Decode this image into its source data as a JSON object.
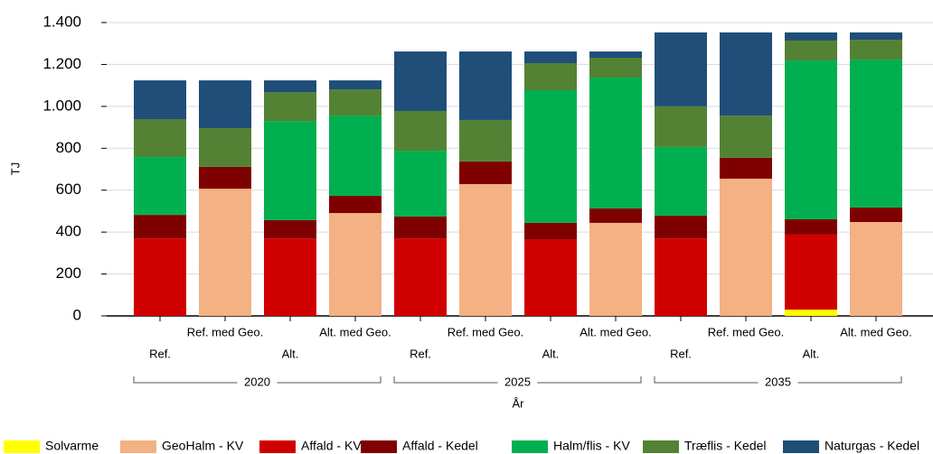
{
  "chart_data": {
    "type": "stacked_bar",
    "categories": [
      "Ref.",
      "Ref. med Geo.",
      "Alt.",
      "Alt. med Geo.",
      "Ref.",
      "Ref. med Geo.",
      "Alt.",
      "Alt. med Geo.",
      "Ref.",
      "Ref. med Geo.",
      "Alt.",
      "Alt. med Geo."
    ],
    "groups": [
      "2020",
      "2025",
      "2035"
    ],
    "xlabel": "År",
    "ylabel": "TJ",
    "ylim": [
      0,
      1400
    ],
    "yticks": [
      0,
      200,
      400,
      600,
      800,
      {
        "value": 1000,
        "label": "1.000"
      },
      {
        "value": 1200,
        "label": "1.200"
      },
      {
        "value": 1400,
        "label": "1.400"
      }
    ],
    "grid": true,
    "legend": "bottom",
    "series": [
      {
        "name": "Solvarme",
        "color": "#ffff00",
        "values": [
          0,
          0,
          0,
          0,
          0,
          0,
          0,
          0,
          0,
          0,
          30,
          0
        ]
      },
      {
        "name": "GeoHalm - KV",
        "color": "#f4b183",
        "values": [
          0,
          607,
          0,
          491,
          0,
          629,
          0,
          444,
          0,
          655,
          0,
          448
        ]
      },
      {
        "name": "Affald - KV",
        "color": "#d00000",
        "values": [
          370,
          0,
          370,
          0,
          370,
          0,
          366,
          0,
          370,
          0,
          358,
          0
        ]
      },
      {
        "name": "Affald - Kedel",
        "color": "#7f0000",
        "values": [
          112,
          104,
          87,
          82,
          104,
          108,
          78,
          69,
          108,
          99,
          73,
          69
        ]
      },
      {
        "name": "Halm/flis - KV",
        "color": "#00b050",
        "values": [
          276,
          0,
          473,
          383,
          314,
          0,
          633,
          624,
          328,
          0,
          758,
          706
        ]
      },
      {
        "name": "Træflis - Kedel",
        "color": "#548235",
        "values": [
          181,
          185,
          138,
          125,
          190,
          198,
          129,
          95,
          194,
          202,
          95,
          95
        ]
      },
      {
        "name": "Naturgas - Kedel",
        "color": "#1f4e79",
        "values": [
          185,
          228,
          56,
          43,
          284,
          327,
          56,
          30,
          353,
          397,
          39,
          35
        ]
      }
    ]
  }
}
